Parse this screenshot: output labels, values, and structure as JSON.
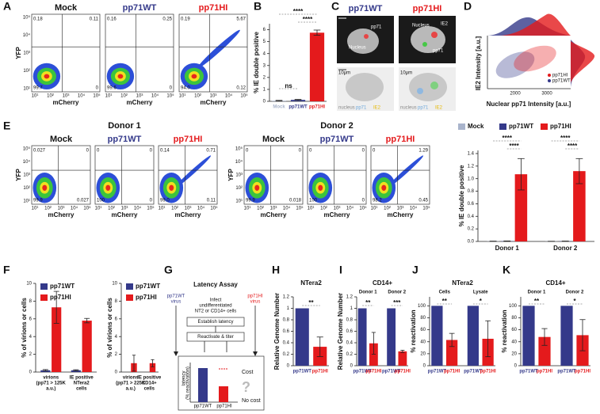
{
  "panel_labels": [
    "A",
    "B",
    "C",
    "D",
    "E",
    "F",
    "G",
    "H",
    "I",
    "J",
    "K"
  ],
  "flow": {
    "x_label": "mCherry",
    "y_label": "YFP",
    "ticks": [
      "10¹",
      "10²",
      "10³",
      "10⁴",
      "10⁵"
    ],
    "A": [
      {
        "title": "Mock",
        "color": "#111111",
        "quadrants": [
          "0.18",
          "0.11",
          "99.7",
          "0"
        ]
      },
      {
        "title": "pp71WT",
        "color": "#34398a",
        "quadrants": [
          "0.16",
          "0.25",
          "99.6",
          "0"
        ]
      },
      {
        "title": "pp71HI",
        "color": "#e41a1c",
        "quadrants": [
          "0.19",
          "5.67",
          "94.0",
          "0.12"
        ]
      }
    ],
    "E": [
      {
        "donor": "Donor 1",
        "plots": [
          {
            "title": "Mock",
            "color": "#111111",
            "quadrants": [
              "0.027",
              "0",
              "99.9",
              "0.027"
            ]
          },
          {
            "title": "pp71WT",
            "color": "#34398a",
            "quadrants": [
              "0",
              "0",
              "100",
              "0"
            ]
          },
          {
            "title": "pp71HI",
            "color": "#e41a1c",
            "quadrants": [
              "0.14",
              "0.71",
              "99.0",
              "0.11"
            ]
          }
        ]
      },
      {
        "donor": "Donor 2",
        "plots": [
          {
            "title": "Mock",
            "color": "#111111",
            "quadrants": [
              "0",
              "0",
              "99.9",
              "0.018"
            ]
          },
          {
            "title": "pp71WT",
            "color": "#34398a",
            "quadrants": [
              "0",
              "0",
              "100",
              "0"
            ]
          },
          {
            "title": "pp71HI",
            "color": "#e41a1c",
            "quadrants": [
              "0",
              "1.29",
              "98.2",
              "0.45"
            ]
          }
        ]
      }
    ]
  },
  "cell_images": {
    "titles": [
      {
        "text": "pp71WT",
        "color": "#34398a"
      },
      {
        "text": "pp71HI",
        "color": "#e41a1c"
      }
    ],
    "labels": [
      "Nucleus",
      "pp71",
      "IE2"
    ],
    "scale": "10μm",
    "legend": [
      "nucleus",
      "pp71",
      "IE2"
    ]
  },
  "density_scatter": {
    "y_label": "IE2 Intensity [a.u.]",
    "x_label": "Nuclear pp71 Intensity [a.u.]",
    "x_ticks": [
      "2000",
      "3000"
    ],
    "legend": [
      {
        "name": "pp71HI",
        "color": "#e41a1c"
      },
      {
        "name": "pp71WT",
        "color": "#34398a"
      }
    ]
  },
  "latency_assay": {
    "title": "Latency Assay",
    "virus_left": [
      "pp71WT",
      "virus"
    ],
    "virus_right": [
      "pp71HI",
      "virus"
    ],
    "infect": [
      "Infect",
      "undifferentiated",
      "NT2 or CD14+ cells"
    ],
    "steps": [
      "Establish latency",
      "Reactivate & titer"
    ],
    "y_label": [
      "latency",
      "(% reactivation)"
    ],
    "bars": [
      "pp71WT",
      "pp71HI"
    ],
    "outcomes": [
      "Cost",
      "?",
      "No cost"
    ]
  },
  "chart_data": [
    {
      "type": "bar",
      "ylabel": "% IE double positive",
      "ylim": [
        0,
        6.5
      ],
      "yticks": [
        0,
        1,
        2,
        3,
        4,
        5,
        6
      ],
      "bars": [
        {
          "label": "Mock",
          "value": 0.05,
          "error": 0.03,
          "color": "#a9b4cc"
        },
        {
          "label": "pp71WT",
          "value": 0.12,
          "error": 0.04,
          "color": "#34398a"
        },
        {
          "label": "pp71HI",
          "value": 5.75,
          "error": 0.22,
          "color": "#e41a1c"
        }
      ],
      "significance": [
        "ns",
        "****",
        "****"
      ]
    },
    {
      "type": "grouped",
      "ylabel": "% IE double positive",
      "ylim": [
        0,
        1.45
      ],
      "yticks": [
        {
          "value": 0,
          "label": "0.0"
        },
        0.2,
        0.4,
        0.6,
        0.8,
        {
          "value": 1,
          "label": "1.0"
        },
        1.2,
        1.4
      ],
      "categories": [
        "Donor 1",
        "Donor 2"
      ],
      "series": [
        {
          "name": "Mock",
          "color": "#a9b4cc",
          "values": [
            0.003,
            0.002
          ],
          "errors": [
            0.002,
            0.001
          ]
        },
        {
          "name": "pp71WT",
          "color": "#34398a",
          "values": [
            0.005,
            0.004
          ],
          "errors": [
            0.003,
            0.002
          ]
        },
        {
          "name": "pp71HI",
          "color": "#e41a1c",
          "values": [
            1.07,
            1.12
          ],
          "errors": [
            0.25,
            0.2
          ]
        }
      ],
      "legend": "top",
      "significance": [
        "****",
        "****",
        "****",
        "****"
      ]
    },
    {
      "type": "grouped",
      "ylabel": "% of virions or cells",
      "ylim": [
        0,
        10
      ],
      "yticks": [
        0,
        2,
        4,
        6,
        8,
        10
      ],
      "categories": [
        [
          "virions",
          "(pp71 > 125K",
          "a.u.)"
        ],
        [
          "IE positive",
          "NTera2",
          "cells"
        ]
      ],
      "series": [
        {
          "name": "pp71WT",
          "color": "#34398a",
          "values": [
            0.2,
            0.2
          ],
          "errors": [
            0.08,
            0.06
          ]
        },
        {
          "name": "pp71HI",
          "color": "#e41a1c",
          "values": [
            7.3,
            5.8
          ],
          "errors": [
            1.8,
            0.25
          ]
        }
      ],
      "legend": "upper left"
    },
    {
      "type": "grouped",
      "ylabel": "% of virions or cells",
      "ylim": [
        0,
        10
      ],
      "yticks": [
        0,
        2,
        4,
        6,
        8,
        10
      ],
      "categories": [
        [
          "virions",
          "(pp71 > 225K",
          "a.u.)"
        ],
        [
          "IE positive",
          "CD14+",
          "cells"
        ]
      ],
      "series": [
        {
          "name": "pp71WT",
          "color": "#34398a",
          "values": [
            0,
            0
          ],
          "errors": [
            0,
            0
          ]
        },
        {
          "name": "pp71HI",
          "color": "#e41a1c",
          "values": [
            1.0,
            1.0
          ],
          "errors": [
            0.9,
            0.4
          ]
        }
      ],
      "legend": "upper left"
    },
    {
      "type": "bar",
      "title": "NTera2",
      "ylabel": "Relative Genome Number",
      "ylim": [
        0,
        1.2
      ],
      "yticks": [
        0,
        0.2,
        0.4,
        0.6,
        0.8,
        1,
        1.2
      ],
      "bars": [
        {
          "label": "pp71WT",
          "value": 1,
          "error": 0,
          "color": "#34398a"
        },
        {
          "label": "pp71HI",
          "value": 0.33,
          "error": 0.17,
          "color": "#e41a1c"
        }
      ],
      "significance": [
        "**"
      ]
    },
    {
      "type": "bar",
      "title": "CD14+",
      "ylabel": "Relative Genome Number",
      "ylim": [
        0,
        1.2
      ],
      "yticks": [
        0,
        0.2,
        0.4,
        0.6,
        0.8,
        1,
        1.2
      ],
      "groups": [
        "Donor 1",
        "Donor 2"
      ],
      "bars": [
        {
          "label": "pp71WT",
          "value": 1,
          "error": 0,
          "color": "#34398a"
        },
        {
          "label": "pp71HI",
          "value": 0.39,
          "error": 0.19,
          "color": "#e41a1c"
        },
        {
          "label": "pp71WT",
          "value": 1,
          "error": 0,
          "color": "#34398a"
        },
        {
          "label": "pp71HI",
          "value": 0.25,
          "error": 0.02,
          "color": "#e41a1c"
        }
      ],
      "significance": [
        "**",
        "***"
      ]
    },
    {
      "type": "bar",
      "title": "NTera2",
      "ylabel": "% reactivation",
      "ylim": [
        0,
        115
      ],
      "yticks": [
        0,
        20,
        40,
        60,
        80,
        100
      ],
      "groups": [
        "Cells",
        "Lysate"
      ],
      "bars": [
        {
          "label": "pp71WT",
          "value": 100,
          "error": 0,
          "color": "#34398a"
        },
        {
          "label": "pp71HI",
          "value": 43,
          "error": 11,
          "color": "#e41a1c"
        },
        {
          "label": "pp71WT",
          "value": 100,
          "error": 0,
          "color": "#34398a"
        },
        {
          "label": "pp71HI",
          "value": 45,
          "error": 30,
          "color": "#e41a1c"
        }
      ],
      "significance": [
        "**",
        "*"
      ]
    },
    {
      "type": "bar",
      "title": "CD14+",
      "ylabel": "% reactivation",
      "ylim": [
        0,
        115
      ],
      "yticks": [
        0,
        20,
        40,
        60,
        80,
        100
      ],
      "groups": [
        "Donor 1",
        "Donor 2"
      ],
      "bars": [
        {
          "label": "pp71WT",
          "value": 100,
          "error": 0,
          "color": "#34398a"
        },
        {
          "label": "pp71HI",
          "value": 48,
          "error": 14,
          "color": "#e41a1c"
        },
        {
          "label": "pp71WT",
          "value": 100,
          "error": 0,
          "color": "#34398a"
        },
        {
          "label": "pp71HI",
          "value": 51,
          "error": 26,
          "color": "#e41a1c"
        }
      ],
      "significance": [
        "**",
        "*"
      ]
    }
  ]
}
